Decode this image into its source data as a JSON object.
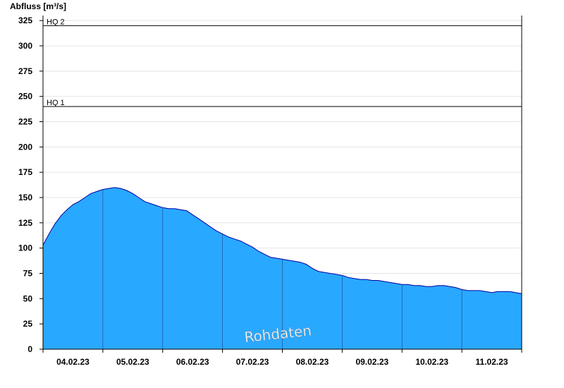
{
  "chart_data": {
    "type": "area",
    "ylabel": "Abfluss [m³/s]",
    "ylim": [
      0,
      330
    ],
    "yticks": [
      0,
      25,
      50,
      75,
      100,
      125,
      150,
      175,
      200,
      225,
      250,
      275,
      300,
      325
    ],
    "xlim_days": [
      0,
      8
    ],
    "day_labels": [
      "04.02.23",
      "05.02.23",
      "06.02.23",
      "07.02.23",
      "08.02.23",
      "09.02.23",
      "10.02.23",
      "11.02.23"
    ],
    "thresholds": [
      {
        "name": "HQ 1",
        "value": 240
      },
      {
        "name": "HQ 2",
        "value": 320
      }
    ],
    "watermark": "Rohdaten",
    "grid": "horizontal",
    "fill_color": "#29a8ff",
    "line_color": "#0000a0",
    "series": [
      {
        "x": [
          0,
          0.1,
          0.2,
          0.3,
          0.4,
          0.5,
          0.6,
          0.7,
          0.8,
          0.9,
          1.0,
          1.1,
          1.2,
          1.3,
          1.4,
          1.5,
          1.6,
          1.7,
          1.8,
          1.9,
          2.0,
          2.1,
          2.2,
          2.3,
          2.4,
          2.5,
          2.6,
          2.7,
          2.8,
          2.9,
          3.0,
          3.1,
          3.2,
          3.3,
          3.4,
          3.5,
          3.6,
          3.7,
          3.8,
          3.9,
          4.0,
          4.1,
          4.2,
          4.3,
          4.4,
          4.5,
          4.6,
          4.7,
          4.8,
          4.9,
          5.0,
          5.1,
          5.2,
          5.3,
          5.4,
          5.5,
          5.6,
          5.7,
          5.8,
          5.9,
          6.0,
          6.1,
          6.2,
          6.3,
          6.4,
          6.5,
          6.6,
          6.7,
          6.8,
          6.9,
          7.0,
          7.1,
          7.2,
          7.3,
          7.4,
          7.5,
          7.6,
          7.7,
          7.8,
          7.9,
          8.0
        ],
        "values": [
          103,
          114,
          124,
          132,
          138,
          143,
          146,
          150,
          154,
          156,
          158,
          159,
          160,
          159,
          157,
          154,
          150,
          146,
          144,
          142,
          140,
          139,
          139,
          138,
          137,
          133,
          129,
          125,
          121,
          117,
          114,
          111,
          109,
          107,
          104,
          101,
          97,
          94,
          91,
          90,
          89,
          88,
          87,
          86,
          84,
          80,
          77,
          76,
          75,
          74,
          73,
          71,
          70,
          69,
          69,
          68,
          68,
          67,
          66,
          65,
          64,
          64,
          63,
          63,
          62,
          62,
          63,
          63,
          62,
          61,
          59,
          58,
          58,
          58,
          57,
          56,
          57,
          57,
          57,
          56,
          55
        ]
      }
    ]
  }
}
